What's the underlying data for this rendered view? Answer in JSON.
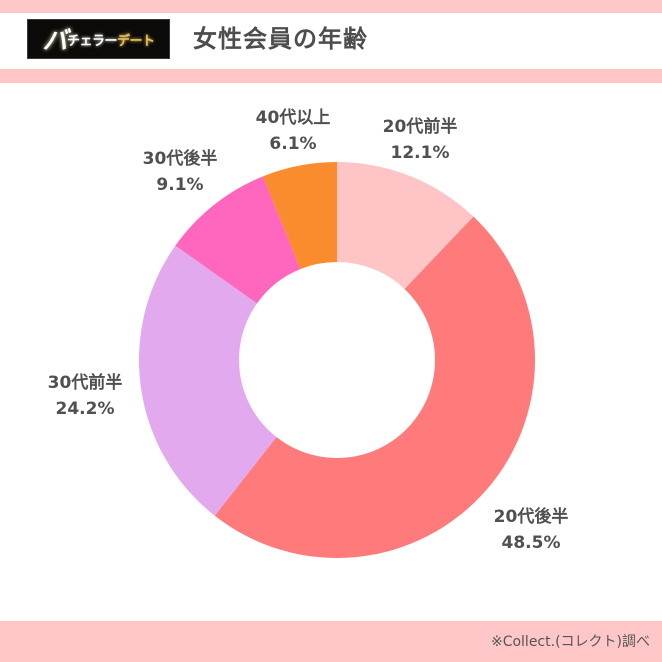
{
  "header": {
    "logo": {
      "part1": "バ",
      "part2": "チェラー",
      "part3": "デート"
    },
    "title": "女性会員の年齢"
  },
  "footer": {
    "source": "※Collect.(コレクト)調べ"
  },
  "colors": {
    "band": "#ffc7c8",
    "text": "#505050"
  },
  "chart_data": {
    "type": "pie",
    "subtype": "donut",
    "title": "女性会員の年齢",
    "categories": [
      "20代前半",
      "20代後半",
      "30代前半",
      "30代後半",
      "40代以上"
    ],
    "values": [
      12.1,
      48.5,
      24.2,
      9.1,
      6.1
    ],
    "unit": "%",
    "colors": [
      "#ffc5c6",
      "#ff7b7b",
      "#e2a9ee",
      "#ff66be",
      "#fb8c2e"
    ],
    "start_angle_deg": 0,
    "direction": "clockwise",
    "labels": [
      {
        "name": "20代前半",
        "value": "12.1%"
      },
      {
        "name": "20代後半",
        "value": "48.5%"
      },
      {
        "name": "30代前半",
        "value": "24.2%"
      },
      {
        "name": "30代後半",
        "value": "9.1%"
      },
      {
        "name": "40代以上",
        "value": "6.1%"
      }
    ],
    "legend": "none (inline labels)"
  }
}
